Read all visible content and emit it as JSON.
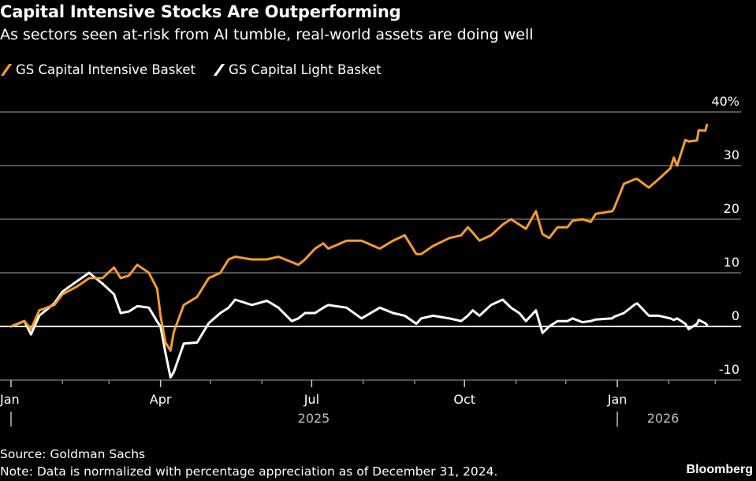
{
  "chart_data": {
    "type": "line",
    "title": "Capital Intensive Stocks Are Outperforming",
    "subtitle": "As sectors seen at-risk from AI tumble, real-world assets are doing well",
    "ylabel": "",
    "xlabel": "",
    "ylim": [
      -10,
      40
    ],
    "xlim": [
      "2025-01-01",
      "2026-03-13"
    ],
    "y_ticks": [
      "40%",
      "30",
      "20",
      "10",
      "0",
      "-10"
    ],
    "y_tick_values": [
      40,
      30,
      20,
      10,
      0,
      -10
    ],
    "x_ticks": [
      {
        "label": "Jan",
        "date": "2025-01-01"
      },
      {
        "label": "Apr",
        "date": "2025-04-01"
      },
      {
        "label": "Jul",
        "date": "2025-07-01"
      },
      {
        "label": "Oct",
        "date": "2025-10-01"
      },
      {
        "label": "Jan",
        "date": "2026-01-01"
      }
    ],
    "year_labels": [
      {
        "label": "2025",
        "date": "2025-07-01"
      },
      {
        "label": "2026",
        "date": "2026-02-01"
      }
    ],
    "grid": true,
    "legend_position": "top-left",
    "x": [
      "2025-01-01",
      "2025-01-09",
      "2025-01-13",
      "2025-01-18",
      "2025-01-27",
      "2025-02-01",
      "2025-02-10",
      "2025-02-17",
      "2025-02-25",
      "2025-03-04",
      "2025-03-08",
      "2025-03-13",
      "2025-03-18",
      "2025-03-25",
      "2025-03-30",
      "2025-04-01",
      "2025-04-04",
      "2025-04-07",
      "2025-04-09",
      "2025-04-15",
      "2025-04-23",
      "2025-04-30",
      "2025-05-07",
      "2025-05-12",
      "2025-05-16",
      "2025-05-26",
      "2025-06-04",
      "2025-06-11",
      "2025-06-19",
      "2025-06-23",
      "2025-06-27",
      "2025-07-03",
      "2025-07-08",
      "2025-07-11",
      "2025-07-22",
      "2025-07-31",
      "2025-08-11",
      "2025-08-19",
      "2025-08-26",
      "2025-09-02",
      "2025-09-05",
      "2025-09-12",
      "2025-09-22",
      "2025-09-29",
      "2025-10-03",
      "2025-10-06",
      "2025-10-10",
      "2025-10-17",
      "2025-10-24",
      "2025-10-29",
      "2025-11-03",
      "2025-11-07",
      "2025-11-13",
      "2025-11-17",
      "2025-11-21",
      "2025-11-26",
      "2025-12-02",
      "2025-12-05",
      "2025-12-11",
      "2025-12-16",
      "2025-12-19",
      "2025-12-29",
      "2025-12-30",
      "2026-01-05",
      "2026-01-12",
      "2026-01-13",
      "2026-01-20",
      "2026-01-26",
      "2026-02-02",
      "2026-02-04",
      "2026-02-06",
      "2026-02-11",
      "2026-02-13",
      "2026-02-18",
      "2026-02-19",
      "2026-02-23",
      "2026-02-24"
    ],
    "series": [
      {
        "name": "GS Capital Intensive Basket",
        "color": "#f39c2b",
        "values": [
          0,
          1,
          -0.5,
          3,
          4,
          6,
          7.5,
          9,
          9,
          11,
          9,
          9.5,
          11.5,
          10,
          7,
          2,
          -3,
          -4.5,
          -1,
          4,
          5.5,
          9,
          10,
          12.5,
          13,
          12.5,
          12.5,
          13,
          12,
          11.5,
          12.5,
          14.5,
          15.5,
          14.5,
          16,
          16,
          14.5,
          16,
          17,
          13.5,
          13.5,
          15,
          16.5,
          17,
          18.5,
          17.5,
          16,
          17,
          19,
          20,
          19,
          18.2,
          21.5,
          17.2,
          16.5,
          18.5,
          18.5,
          19.7,
          20,
          19.5,
          21,
          21.5,
          22,
          26.6,
          27.5,
          27.5,
          25.9,
          27.5,
          29.5,
          31.5,
          30,
          34.8,
          34.5,
          34.7,
          36.6,
          36.5,
          37.6
        ]
      },
      {
        "name": "GS Capital Light Basket",
        "color": "#ffffff",
        "values": [
          0,
          1,
          -1.5,
          2,
          4.3,
          6.5,
          8.5,
          10,
          8,
          6,
          2.5,
          2.8,
          3.8,
          3.5,
          0.9,
          0,
          -5,
          -9.5,
          -8.5,
          -3.2,
          -3,
          0.6,
          2.5,
          3.5,
          5,
          4,
          4.8,
          3.5,
          1,
          1.5,
          2.5,
          2.5,
          3.5,
          4,
          3.5,
          1.5,
          3.5,
          2.5,
          2,
          0.5,
          1.5,
          2,
          1.5,
          1,
          2,
          3,
          2,
          4,
          5,
          3.5,
          2.5,
          1,
          3,
          -1.2,
          0,
          1,
          1,
          1.5,
          0.8,
          1,
          1.3,
          1.5,
          1.8,
          2.5,
          4.2,
          4.3,
          2,
          2,
          1.5,
          1.2,
          1.5,
          0.5,
          -0.5,
          0.5,
          1.2,
          0.6,
          0.3
        ]
      }
    ]
  },
  "footer": {
    "source": "Source: Goldman Sachs",
    "note": "Note: Data is normalized with percentage appreciation as of December 31, 2024.",
    "brand": "Bloomberg"
  },
  "colors": {
    "background": "#000000",
    "grid": "#6e6e6e",
    "zero_line": "#ffffff",
    "year_label": "#bdbdbd"
  }
}
